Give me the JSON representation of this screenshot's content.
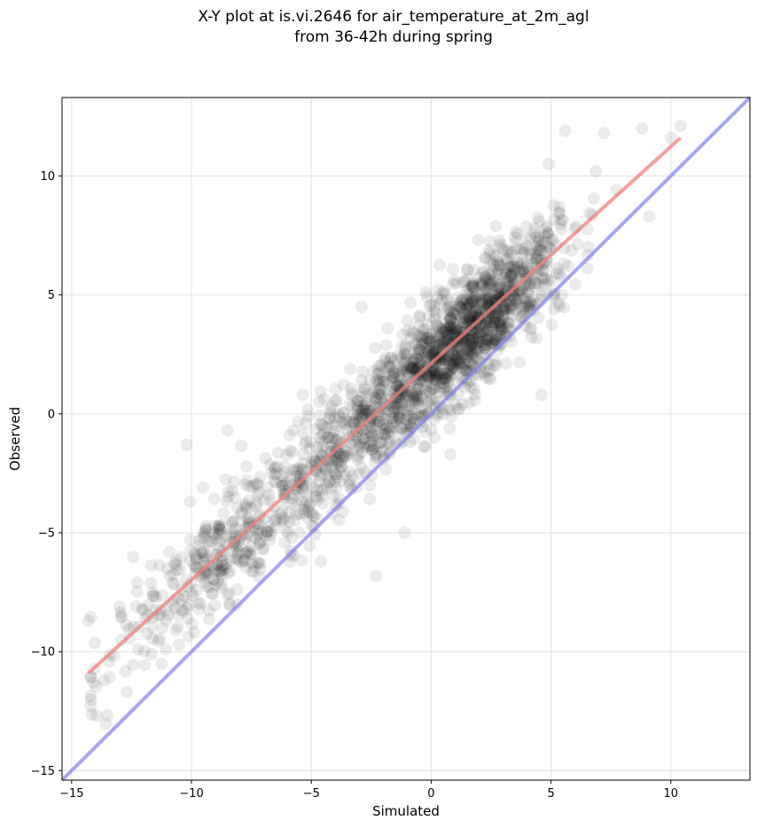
{
  "chart_data": {
    "type": "scatter",
    "title": "X-Y plot at is.vi.2646 for air_temperature_at_2m_agl",
    "subtitle": "from 36-42h during spring",
    "xlabel": "Simulated",
    "ylabel": "Observed",
    "xlim": [
      -15.4,
      13.3
    ],
    "ylim": [
      -15.4,
      13.3
    ],
    "xticks": [
      -15,
      -10,
      -5,
      0,
      5,
      10
    ],
    "yticks": [
      -15,
      -10,
      -5,
      0,
      5,
      10
    ],
    "xtick_labels": [
      "−15",
      "−10",
      "−5",
      "0",
      "5",
      "10"
    ],
    "ytick_labels": [
      "−15",
      "−10",
      "−5",
      "0",
      "5",
      "10"
    ],
    "grid": true,
    "scatter_color": "#000000",
    "scatter_alpha": 0.08,
    "points_note_count": 2000,
    "fit_line": {
      "color": "#f08080",
      "x": [
        -14.3,
        10.4
      ],
      "y": [
        -10.9,
        11.6
      ]
    },
    "identity_line": {
      "color": "#8080f0",
      "x": [
        -15.4,
        13.3
      ],
      "y": [
        -15.4,
        13.3
      ]
    },
    "scatter_extremes": [
      {
        "x": -14.3,
        "y": -8.7
      },
      {
        "x": -14.1,
        "y": -11.3
      },
      {
        "x": -12.7,
        "y": -11.7
      },
      {
        "x": 10.4,
        "y": 12.1
      },
      {
        "x": 8.8,
        "y": 12.0
      },
      {
        "x": 5.6,
        "y": 11.9
      },
      {
        "x": -10.2,
        "y": -1.3
      },
      {
        "x": -2.9,
        "y": 4.5
      },
      {
        "x": 4.9,
        "y": 10.5
      },
      {
        "x": 9.1,
        "y": 8.3
      },
      {
        "x": 4.6,
        "y": 0.8
      },
      {
        "x": 0.8,
        "y": -1.7
      },
      {
        "x": -2.3,
        "y": -6.8
      },
      {
        "x": -1.1,
        "y": -5.0
      },
      {
        "x": -4.6,
        "y": -6.2
      },
      {
        "x": 7.2,
        "y": 11.8
      },
      {
        "x": -8.5,
        "y": -0.7
      },
      {
        "x": 10.0,
        "y": 11.6
      }
    ]
  }
}
